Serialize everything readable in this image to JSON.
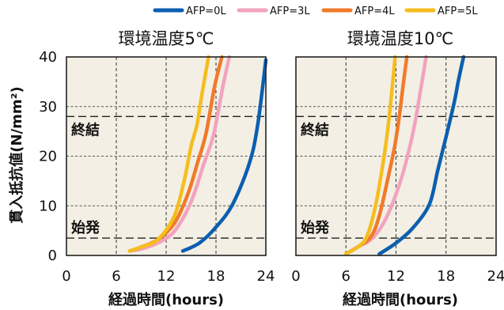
{
  "chart_data": {
    "type": "line",
    "legend": {
      "placement": "top-right",
      "entries": [
        {
          "name": "AFP=0L",
          "color": "#0b5fb0"
        },
        {
          "name": "AFP=3L",
          "color": "#f2a3be"
        },
        {
          "name": "AFP=4L",
          "color": "#f07a2a"
        },
        {
          "name": "AFP=5L",
          "color": "#f5bd1e"
        }
      ]
    },
    "ylabel": "貫入抵抗値(N/mm²)",
    "ylim": [
      0,
      40
    ],
    "yticks": [
      "0",
      "10",
      "20",
      "30",
      "40"
    ],
    "grid": true,
    "reference_lines": [
      {
        "label": "終結",
        "y": 28
      },
      {
        "label": "始発",
        "y": 3.5
      }
    ],
    "panels": [
      {
        "title": "環境温度5℃",
        "xlabel": "経過時間(hours)",
        "xlim": [
          0,
          24
        ],
        "xticks": [
          "0",
          "6",
          "12",
          "18",
          "24"
        ],
        "series": [
          {
            "name": "AFP=0L",
            "x": [
              14,
              16,
              18,
              20,
              22,
              23,
              24
            ],
            "y": [
              0.9,
              2.5,
              5.7,
              10.3,
              18.5,
              26.1,
              39.4
            ]
          },
          {
            "name": "AFP=3L",
            "x": [
              7.6,
              9,
              11,
              13,
              15,
              16.5,
              17.7,
              18.8,
              19.6
            ],
            "y": [
              0.9,
              1.3,
              2.5,
              4.9,
              10.8,
              18.3,
              24.3,
              33.8,
              40
            ]
          },
          {
            "name": "AFP=4L",
            "x": [
              7.6,
              9,
              11,
              13,
              14.6,
              15.8,
              16.8,
              17.8,
              18.7
            ],
            "y": [
              0.9,
              1.7,
              3.2,
              6.5,
              12.3,
              18.8,
              24.6,
              33.8,
              40
            ]
          },
          {
            "name": "AFP=5L",
            "x": [
              7.6,
              9,
              11,
              13,
              14.2,
              15,
              15.7,
              16.2,
              16.7,
              17.1
            ],
            "y": [
              0.9,
              1.7,
              3.2,
              8.0,
              15.3,
              22.0,
              26.2,
              31.4,
              36.3,
              40
            ]
          }
        ]
      },
      {
        "title": "環境温度10℃",
        "xlabel": "経過時間(hours)",
        "xlim": [
          0,
          24
        ],
        "xticks": [
          "0",
          "6",
          "12",
          "18",
          "24"
        ],
        "series": [
          {
            "name": "AFP=0L",
            "x": [
              10,
              12,
              14,
              16,
              17,
              18,
              19,
              19.5,
              20.1
            ],
            "y": [
              0.3,
              2.5,
              5.5,
              10.3,
              17.1,
              23.9,
              31.0,
              35.4,
              40
            ]
          },
          {
            "name": "AFP=3L",
            "x": [
              6,
              7.5,
              9,
              10.5,
              12,
              13.2,
              14.2,
              15,
              15.6
            ],
            "y": [
              0.3,
              1.8,
              3.2,
              6.5,
              12.3,
              18.8,
              26.1,
              33.8,
              40
            ]
          },
          {
            "name": "AFP=4L",
            "x": [
              6,
              7.5,
              9,
              10,
              11,
              11.8,
              12.4,
              12.9,
              13.3
            ],
            "y": [
              0.3,
              1.8,
              3.8,
              8.0,
              15.3,
              21.6,
              28.1,
              34.9,
              40
            ]
          },
          {
            "name": "AFP=5L",
            "x": [
              6,
              7.5,
              8.5,
              9.5,
              10.3,
              10.9,
              11.4,
              11.9
            ],
            "y": [
              0.3,
              1.8,
              3.8,
              9.6,
              17.1,
              23.9,
              31.4,
              40
            ]
          }
        ]
      }
    ]
  }
}
